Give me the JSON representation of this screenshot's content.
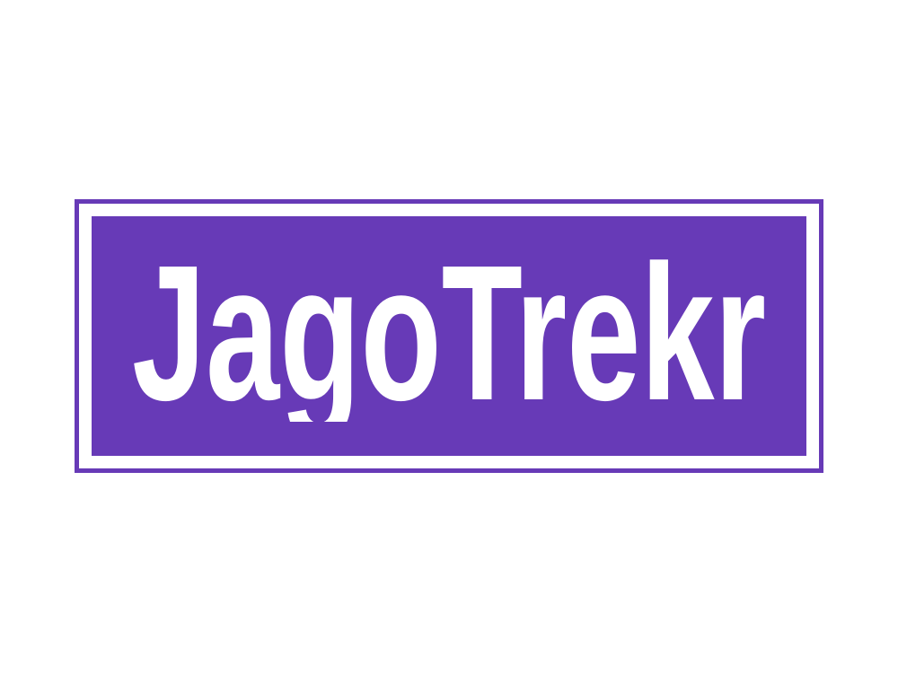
{
  "logo": {
    "wordmark": "JagoTrekr",
    "colors": {
      "brand": "#673AB7",
      "text": "#FFFFFF",
      "background": "#FFFFFF"
    }
  }
}
